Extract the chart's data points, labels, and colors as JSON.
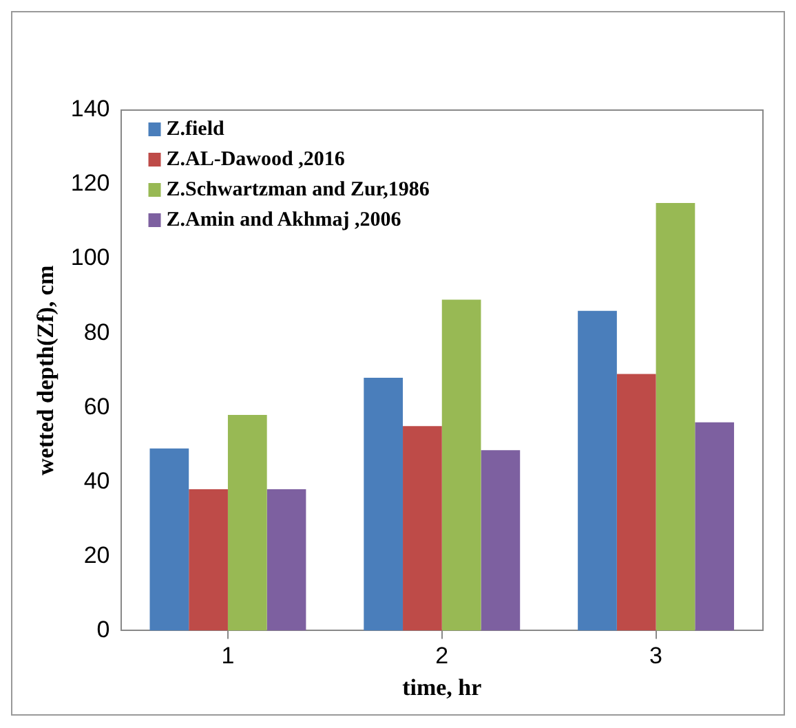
{
  "chart_data": {
    "type": "bar",
    "xlabel": "time, hr",
    "ylabel": "wetted depth(Zf), cm",
    "categories": [
      "1",
      "2",
      "3"
    ],
    "series": [
      {
        "name": "Z.field",
        "color": "#4a7ebb",
        "values": [
          49,
          68,
          86
        ]
      },
      {
        "name": "Z.AL-Dawood ,2016",
        "color": "#be4b48",
        "values": [
          38,
          55,
          69
        ]
      },
      {
        "name": "Z.Schwartzman and Zur,1986",
        "color": "#98b954",
        "values": [
          58,
          89,
          115
        ]
      },
      {
        "name": "Z.Amin and Akhmaj ,2006",
        "color": "#7d60a0",
        "values": [
          38,
          48.5,
          56
        ]
      }
    ],
    "ylim": [
      0,
      140
    ],
    "yticks": [
      0,
      20,
      40,
      60,
      80,
      100,
      120,
      140
    ],
    "grid": false,
    "legend": "top left"
  }
}
